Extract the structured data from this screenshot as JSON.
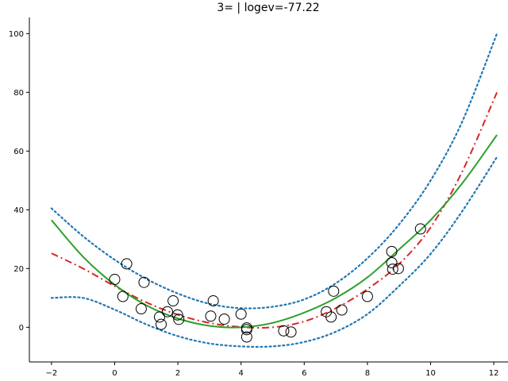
{
  "chart_data": {
    "type": "scatter",
    "title": "3= | logev=-77.22",
    "xlabel": "",
    "ylabel": "",
    "xlim": [
      -2.7,
      12.45
    ],
    "ylim": [
      -11.8,
      105.5
    ],
    "x_ticks": [
      -2,
      0,
      2,
      4,
      6,
      8,
      10,
      12
    ],
    "y_ticks": [
      0,
      20,
      40,
      60,
      80,
      100
    ],
    "x_tick_labels": [
      "−2",
      "0",
      "2",
      "4",
      "6",
      "8",
      "10",
      "12"
    ],
    "y_tick_labels": [
      "0",
      "20",
      "40",
      "60",
      "80",
      "100"
    ],
    "grid": false,
    "legend": "none",
    "colors": {
      "points": "#000000",
      "fit": "#2ca02c",
      "true_curve": "#d62728",
      "band": "#1f77b4"
    },
    "points": [
      {
        "x": 0.0,
        "y": 16.3
      },
      {
        "x": 0.26,
        "y": 10.5
      },
      {
        "x": 0.38,
        "y": 21.6
      },
      {
        "x": 0.84,
        "y": 6.3
      },
      {
        "x": 0.93,
        "y": 15.3
      },
      {
        "x": 1.42,
        "y": 3.5
      },
      {
        "x": 1.47,
        "y": 1.0
      },
      {
        "x": 1.67,
        "y": 5.3
      },
      {
        "x": 1.85,
        "y": 9.0
      },
      {
        "x": 1.99,
        "y": 4.2
      },
      {
        "x": 2.03,
        "y": 2.7
      },
      {
        "x": 3.04,
        "y": 3.8
      },
      {
        "x": 3.12,
        "y": 9.0
      },
      {
        "x": 3.47,
        "y": 2.8
      },
      {
        "x": 4.0,
        "y": 4.5
      },
      {
        "x": 4.18,
        "y": -0.2
      },
      {
        "x": 4.18,
        "y": -0.8
      },
      {
        "x": 4.18,
        "y": -3.3
      },
      {
        "x": 5.35,
        "y": -1.2
      },
      {
        "x": 5.58,
        "y": -1.6
      },
      {
        "x": 6.7,
        "y": 5.3
      },
      {
        "x": 6.85,
        "y": 3.5
      },
      {
        "x": 6.93,
        "y": 12.3
      },
      {
        "x": 7.19,
        "y": 5.9
      },
      {
        "x": 8.0,
        "y": 10.5
      },
      {
        "x": 8.77,
        "y": 25.8
      },
      {
        "x": 8.77,
        "y": 22.0
      },
      {
        "x": 8.8,
        "y": 19.8
      },
      {
        "x": 8.98,
        "y": 20.0
      },
      {
        "x": 9.68,
        "y": 33.5
      }
    ],
    "series": [
      {
        "style": "solid",
        "x": [
          -2,
          -1,
          0,
          1,
          2,
          3,
          4,
          5,
          6,
          7,
          8,
          9,
          10,
          11,
          12.1
        ],
        "y": [
          36.5,
          24.0,
          14.5,
          7.5,
          3.0,
          0.5,
          0.0,
          1.5,
          5.0,
          10.0,
          17.0,
          26.5,
          36.5,
          49.0,
          65.5
        ]
      },
      {
        "style": "dashdot",
        "x": [
          -2,
          -1,
          0,
          1,
          2,
          3,
          4,
          5,
          6,
          7,
          8,
          9,
          10,
          11,
          12.1
        ],
        "y": [
          25.2,
          20.0,
          14.0,
          8.5,
          4.3,
          1.5,
          0.1,
          0.0,
          2.0,
          6.5,
          13.0,
          21.5,
          34.0,
          53.0,
          80.0
        ]
      },
      {
        "style": "dotted",
        "x": [
          -2,
          -1,
          0,
          1,
          2,
          3,
          4,
          5,
          6,
          7,
          8,
          9,
          10,
          11,
          12.1
        ],
        "y": [
          40.5,
          31.0,
          23.0,
          16.5,
          11.5,
          8.0,
          6.5,
          7.0,
          9.5,
          15.0,
          23.5,
          35.0,
          50.0,
          70.0,
          100.0
        ]
      },
      {
        "style": "dotted",
        "x": [
          -2,
          -1,
          0,
          1,
          2,
          3,
          4,
          5,
          6,
          7,
          8,
          9,
          10,
          11,
          12.1
        ],
        "y": [
          10.0,
          10.0,
          6.0,
          1.0,
          -3.0,
          -5.5,
          -6.5,
          -6.5,
          -5.0,
          -1.5,
          4.5,
          14.0,
          25.0,
          39.5,
          58.0
        ]
      }
    ]
  }
}
